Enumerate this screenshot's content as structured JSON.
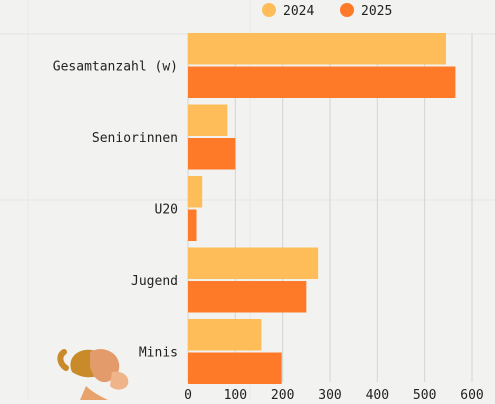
{
  "chart_data": {
    "type": "bar",
    "orientation": "horizontal",
    "categories": [
      "Gesamtanzahl (w)",
      "Seniorinnen",
      "U20",
      "Jugend",
      "Minis"
    ],
    "series": [
      {
        "name": "2024",
        "color": "#ffbd59",
        "values": [
          545,
          83,
          30,
          275,
          155
        ]
      },
      {
        "name": "2025",
        "color": "#ff7a28",
        "values": [
          565,
          100,
          18,
          250,
          198
        ]
      }
    ],
    "xticks": [
      "0",
      "100",
      "200",
      "300",
      "400",
      "500",
      "600"
    ],
    "xlim": [
      0,
      600
    ],
    "grid": true,
    "legend_position": "top",
    "title": "",
    "xlabel": "",
    "ylabel": ""
  }
}
